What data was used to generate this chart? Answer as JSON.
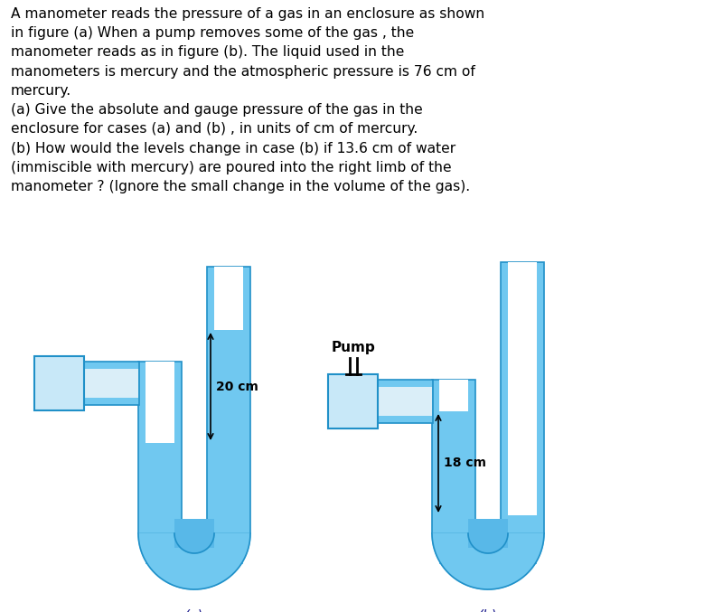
{
  "title_text": "A manometer reads the pressure of a gas in an enclosure as shown\nin figure (a) When a pump removes some of the gas , the\nmanometer reads as in figure (b). The liquid used in the\nmanometers is mercury and the atmospheric pressure is 76 cm of\nmercury.\n(a) Give the absolute and gauge pressure of the gas in the\nenclosure for cases (a) and (b) , in units of cm of mercury.\n(b) How would the levels change in case (b) if 13.6 cm of water\n(immiscible with mercury) are poured into the right limb of the\nmanometer ? (Ignore the small change in the volume of the gas).",
  "bg_color": "#ffffff",
  "tube_fill_color": "#70c8f0",
  "tube_wall_color": "#4ab0e8",
  "tube_border_color": "#2090c8",
  "tube_inner_color": "#ffffff",
  "mercury_color": "#58b8e8",
  "box_fill_color": "#c8e8f8",
  "box_border_color": "#2090c8",
  "label_a": "(a)",
  "label_b": "(b)",
  "annotation_a": "20 cm",
  "annotation_b": "18 cm",
  "pump_label": "Pump",
  "label_color": "#1a1a8c",
  "text_color": "#000000"
}
